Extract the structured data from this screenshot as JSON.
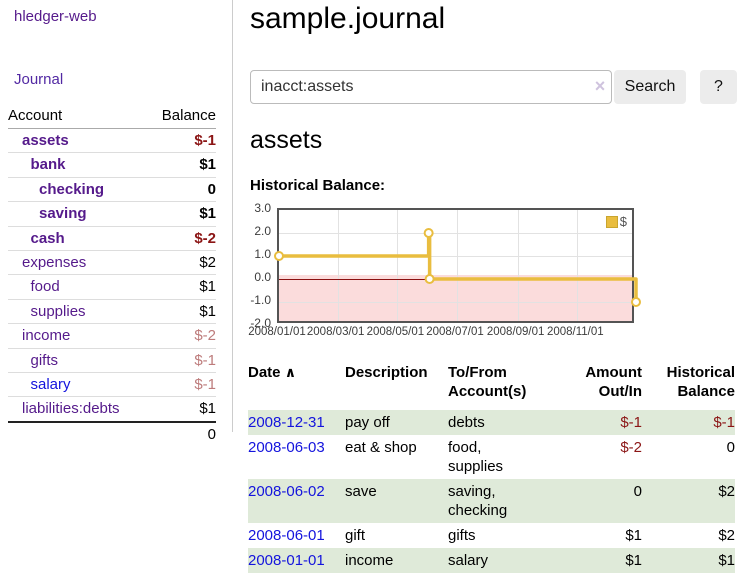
{
  "app": {
    "brand": "hledger-web",
    "nav_journal": "Journal"
  },
  "sidebar": {
    "account_header": "Account",
    "balance_header": "Balance",
    "accounts": [
      {
        "name": "assets",
        "level": 1,
        "bold": true,
        "blue": false,
        "balance": "$-1",
        "balance_style": "neg-bold"
      },
      {
        "name": "bank",
        "level": 2,
        "bold": true,
        "blue": false,
        "balance": "$1",
        "balance_style": "pos-bold"
      },
      {
        "name": "checking",
        "level": 3,
        "bold": true,
        "blue": false,
        "balance": "0",
        "balance_style": "pos-bold"
      },
      {
        "name": "saving",
        "level": 3,
        "bold": true,
        "blue": false,
        "balance": "$1",
        "balance_style": "pos-bold"
      },
      {
        "name": "cash",
        "level": 2,
        "bold": true,
        "blue": false,
        "balance": "$-2",
        "balance_style": "neg-bold"
      },
      {
        "name": "expenses",
        "level": 1,
        "bold": false,
        "blue": false,
        "balance": "$2",
        "balance_style": "pos"
      },
      {
        "name": "food",
        "level": 2,
        "bold": false,
        "blue": false,
        "balance": "$1",
        "balance_style": "pos"
      },
      {
        "name": "supplies",
        "level": 2,
        "bold": false,
        "blue": false,
        "balance": "$1",
        "balance_style": "pos"
      },
      {
        "name": "income",
        "level": 1,
        "bold": false,
        "blue": false,
        "balance": "$-2",
        "balance_style": "neg-pale"
      },
      {
        "name": "gifts",
        "level": 2,
        "bold": false,
        "blue": false,
        "balance": "$-1",
        "balance_style": "neg-pale"
      },
      {
        "name": "salary",
        "level": 2,
        "bold": false,
        "blue": true,
        "balance": "$-1",
        "balance_style": "neg-pale"
      },
      {
        "name": "liabilities:debts",
        "level": 1,
        "bold": false,
        "blue": false,
        "balance": "$1",
        "balance_style": "pos"
      }
    ],
    "total": "0"
  },
  "header": {
    "title": "sample.journal"
  },
  "search": {
    "value": "inacct:assets",
    "clear_icon": "×",
    "button_label": "Search",
    "help_label": "?"
  },
  "account_page": {
    "heading": "assets",
    "chart_label": "Historical Balance:"
  },
  "chart_data": {
    "type": "line",
    "title": "Historical Balance",
    "step": true,
    "series": [
      {
        "name": "$",
        "color": "#e9bd3f",
        "points": [
          [
            "2008-01-01",
            1
          ],
          [
            "2008-06-02",
            2
          ],
          [
            "2008-06-03",
            0
          ],
          [
            "2008-12-31",
            -1
          ]
        ]
      }
    ],
    "ylim": [
      -2.0,
      3.0
    ],
    "yticks": [
      "3.0",
      "2.0",
      "1.0",
      "0.0",
      "-1.0",
      "-2.0"
    ],
    "ytick_values": [
      3,
      2,
      1,
      0,
      -1,
      -2
    ],
    "xticks": [
      "2008/01/01",
      "2008/03/01",
      "2008/05/01",
      "2008/07/01",
      "2008/09/01",
      "2008/11/01"
    ],
    "xtick_days": [
      0,
      60,
      121,
      182,
      244,
      305
    ],
    "x_total_days": 365,
    "grid": true,
    "legend": "$",
    "legend_position": "top-right",
    "negative_region_color": "#fbdcdc",
    "zero_line_color": "#8b1010",
    "line_color": "#e9bd3f",
    "marker_fill": "#ffffff"
  },
  "register": {
    "columns": [
      {
        "line1": "Date",
        "line2": "",
        "align": "left",
        "sort_arrow": "∧"
      },
      {
        "line1": "Description",
        "line2": "",
        "align": "left",
        "sort_arrow": ""
      },
      {
        "line1": "To/From",
        "line2": "Account(s)",
        "align": "left",
        "sort_arrow": ""
      },
      {
        "line1": "Amount",
        "line2": "Out/In",
        "align": "right",
        "sort_arrow": ""
      },
      {
        "line1": "Historical",
        "line2": "Balance",
        "align": "right",
        "sort_arrow": ""
      }
    ],
    "rows": [
      {
        "date": "2008-12-31",
        "description": "pay off",
        "accounts": "debts",
        "amount": "$-1",
        "amount_neg": true,
        "balance": "$-1",
        "balance_neg": true,
        "shaded": true
      },
      {
        "date": "2008-06-03",
        "description": "eat & shop",
        "accounts": "food, supplies",
        "amount": "$-2",
        "amount_neg": true,
        "balance": "0",
        "balance_neg": false,
        "shaded": false
      },
      {
        "date": "2008-06-02",
        "description": "save",
        "accounts": "saving, checking",
        "amount": "0",
        "amount_neg": false,
        "balance": "$2",
        "balance_neg": false,
        "shaded": true
      },
      {
        "date": "2008-06-01",
        "description": "gift",
        "accounts": "gifts",
        "amount": "$1",
        "amount_neg": false,
        "balance": "$2",
        "balance_neg": false,
        "shaded": false
      },
      {
        "date": "2008-01-01",
        "description": "income",
        "accounts": "salary",
        "amount": "$1",
        "amount_neg": false,
        "balance": "$1",
        "balance_neg": false,
        "shaded": true
      }
    ]
  }
}
